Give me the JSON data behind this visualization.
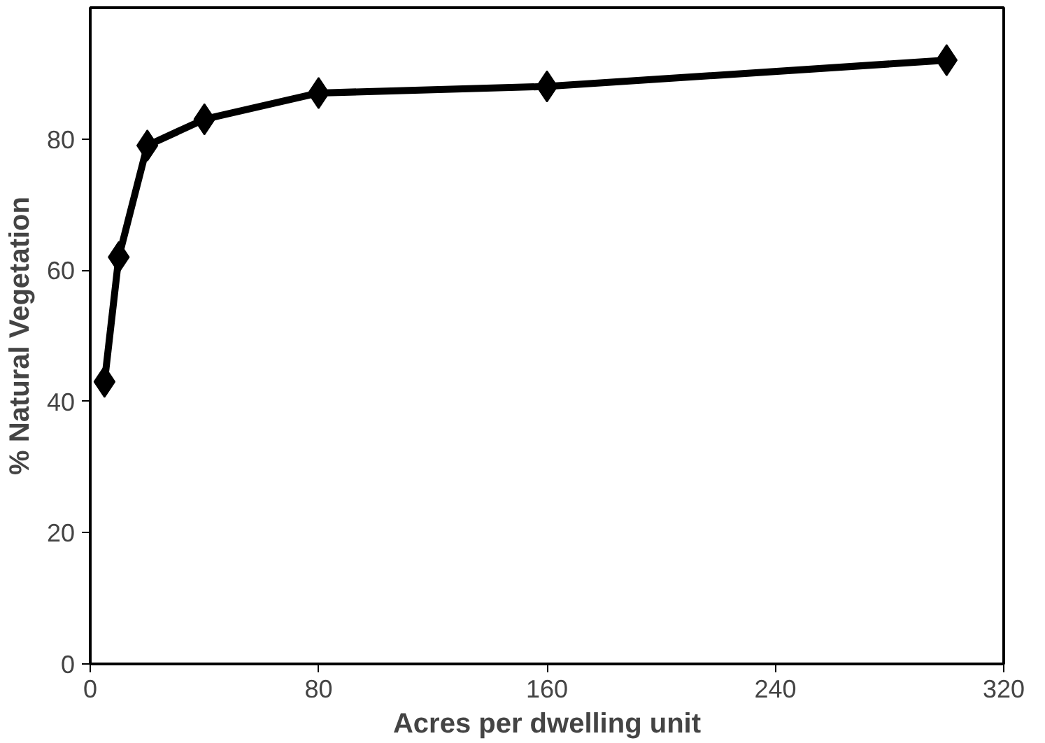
{
  "chart_data": {
    "type": "line",
    "xlabel": "Acres per dwelling unit",
    "ylabel": "% Natural Vegetation",
    "x": [
      5,
      10,
      20,
      40,
      80,
      160,
      300
    ],
    "series": [
      {
        "color": "#000000",
        "values": [
          43,
          62,
          79,
          83,
          87,
          88,
          92
        ]
      }
    ],
    "xlim": [
      0,
      320
    ],
    "xticks": [
      0,
      80,
      160,
      240,
      320
    ],
    "ylim": [
      0,
      100
    ],
    "yticks": [
      0,
      20,
      40,
      60,
      80
    ],
    "marker": "diamond",
    "line_style": "solid"
  }
}
